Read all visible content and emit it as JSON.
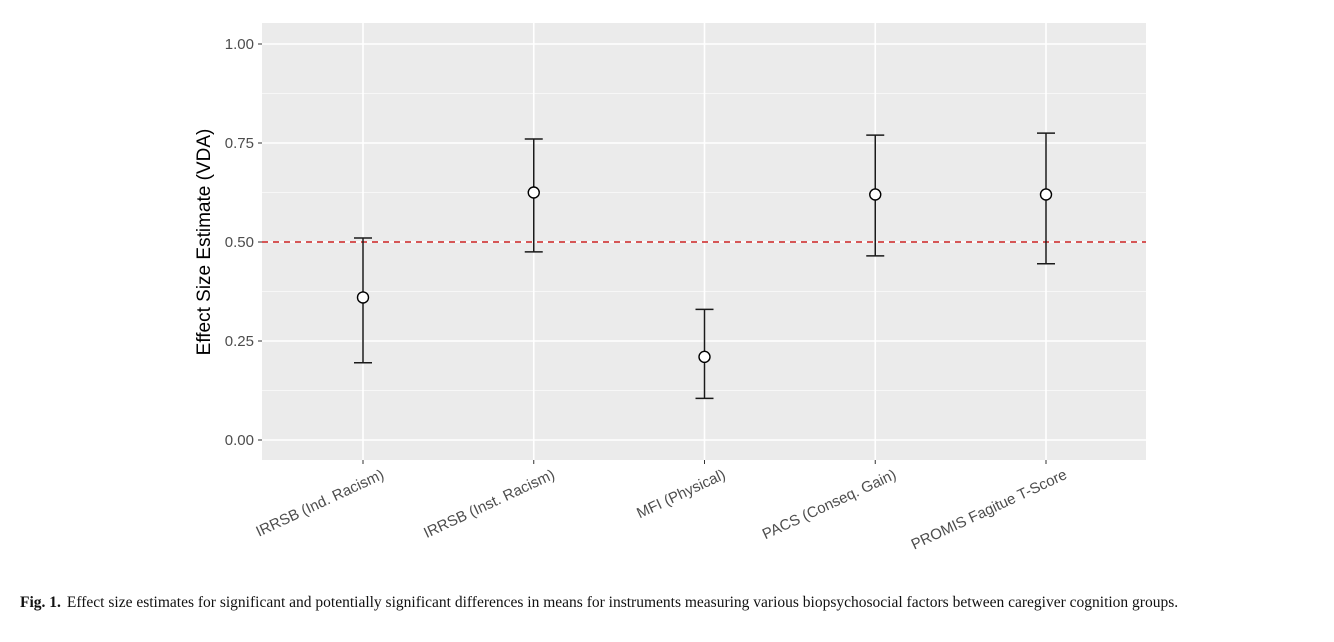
{
  "chart_data": {
    "type": "scatter",
    "subtype": "point-with-errorbars",
    "title": "",
    "xlabel": "",
    "ylabel": "Effect Size Estimate (VDA)",
    "ylim": [
      -0.05,
      1.05
    ],
    "yticks": [
      0.0,
      0.25,
      0.5,
      0.75,
      1.0
    ],
    "ytick_labels": [
      "0.00",
      "0.25",
      "0.50",
      "0.75",
      "1.00"
    ],
    "categories": [
      "IRRSB (Ind. Racism)",
      "IRRSB (Inst. Racism)",
      "MFI (Physical)",
      "PACS (Conseq. Gain)",
      "PROMIS Fagitue T-Score"
    ],
    "series": [
      {
        "name": "VDA estimate",
        "values": [
          0.36,
          0.625,
          0.21,
          0.62,
          0.62
        ],
        "lower": [
          0.195,
          0.475,
          0.105,
          0.465,
          0.445
        ],
        "upper": [
          0.51,
          0.76,
          0.33,
          0.77,
          0.775
        ],
        "marker": "open-circle",
        "color": "#000000"
      }
    ],
    "reference_line": {
      "y": 0.5,
      "style": "dashed",
      "color": "#cc2222"
    },
    "grid": true,
    "panel_background": "#ebebeb",
    "legend": "none"
  },
  "caption": {
    "label": "Fig. 1.",
    "text": "Effect size estimates for significant and potentially significant differences in means for instruments measuring various biopsychosocial factors between caregiver cognition groups."
  }
}
